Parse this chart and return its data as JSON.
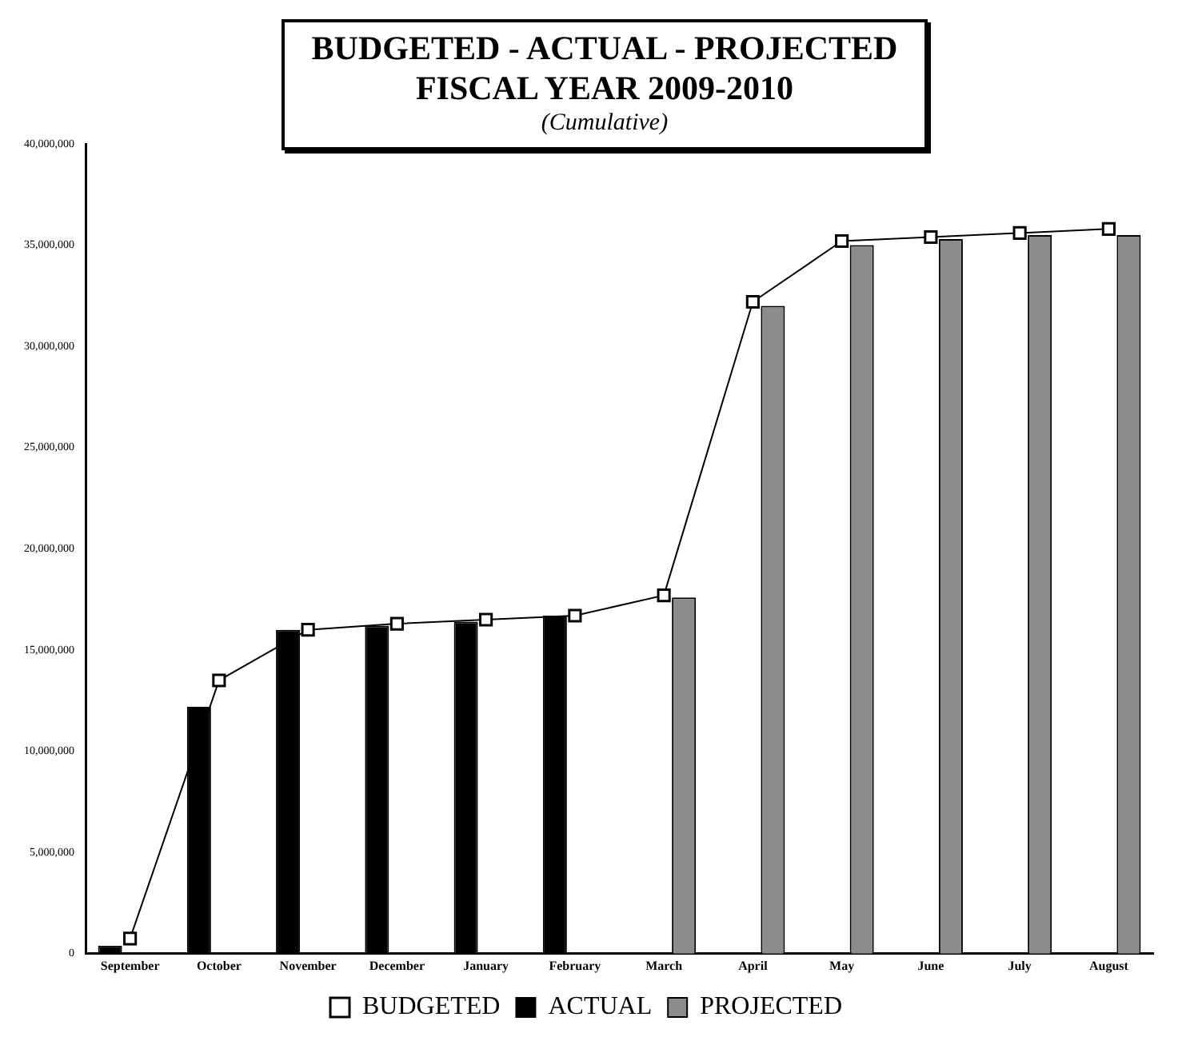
{
  "chart_data": {
    "type": "bar",
    "title": "BUDGETED - ACTUAL - PROJECTED",
    "subtitle": "FISCAL YEAR 2009-2010",
    "annotations": [
      "(Cumulative)"
    ],
    "categories": [
      "September",
      "October",
      "November",
      "December",
      "January",
      "February",
      "March",
      "April",
      "May",
      "June",
      "July",
      "August"
    ],
    "series": [
      {
        "name": "ACTUAL",
        "color": "#000000",
        "values": [
          400000,
          12200000,
          16000000,
          16200000,
          16400000,
          16700000,
          null,
          null,
          null,
          null,
          null,
          null
        ]
      },
      {
        "name": "PROJECTED",
        "color": "#8c8c8c",
        "values": [
          null,
          null,
          null,
          null,
          null,
          null,
          17600000,
          32000000,
          35000000,
          35300000,
          35500000,
          35500000
        ]
      },
      {
        "name": "BUDGETED",
        "type": "line",
        "color": "#000000",
        "marker": "square",
        "values": [
          750000,
          13500000,
          16000000,
          16300000,
          16500000,
          16700000,
          17700000,
          32200000,
          35200000,
          35400000,
          35600000,
          35800000
        ]
      }
    ],
    "ylim": [
      0,
      40000000
    ],
    "yticks": [
      {
        "value": 0,
        "label": "0"
      },
      {
        "value": 5000000,
        "label": "5,000,000"
      },
      {
        "value": 10000000,
        "label": "10,000,000"
      },
      {
        "value": 15000000,
        "label": "15,000,000"
      },
      {
        "value": 20000000,
        "label": "20,000,000"
      },
      {
        "value": 25000000,
        "label": "25,000,000"
      },
      {
        "value": 30000000,
        "label": "30,000,000"
      },
      {
        "value": 35000000,
        "label": "35,000,000"
      },
      {
        "value": 40000000,
        "label": "40,000,000"
      }
    ],
    "grid": false,
    "legend": "bottom"
  }
}
